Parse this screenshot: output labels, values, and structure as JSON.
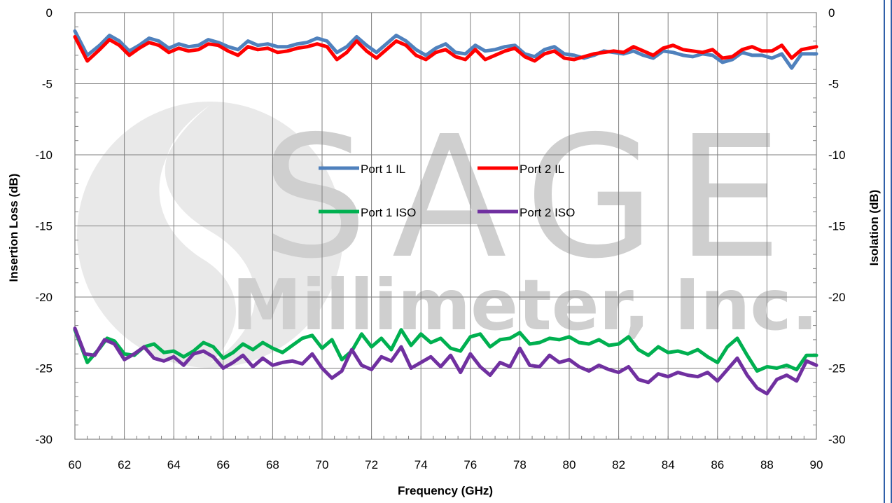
{
  "chart_data": {
    "type": "line",
    "xlabel": "Frequency (GHz)",
    "ylabel_left": "Insertion Loss (dB)",
    "ylabel_right": "Isolation (dB)",
    "xlim": [
      60,
      90
    ],
    "ylim": [
      -30,
      0
    ],
    "ylim_right": [
      -30,
      0
    ],
    "x_ticks": [
      "60",
      "62",
      "64",
      "66",
      "68",
      "70",
      "72",
      "74",
      "76",
      "78",
      "80",
      "82",
      "84",
      "86",
      "88",
      "90"
    ],
    "y_ticks": [
      "0",
      "-5",
      "-10",
      "-15",
      "-20",
      "-25",
      "-30"
    ],
    "grid": true,
    "legend_position": "center",
    "watermark": "SAGE Millimeter, Inc.",
    "series": [
      {
        "name": "Port 1 IL",
        "color": "#4f81bd",
        "x": [
          60,
          60.5,
          61,
          61.4,
          61.8,
          62.2,
          62.6,
          63,
          63.4,
          63.8,
          64.2,
          64.6,
          65,
          65.4,
          65.8,
          66.2,
          66.6,
          67,
          67.4,
          67.8,
          68.2,
          68.6,
          69,
          69.4,
          69.8,
          70.2,
          70.6,
          71,
          71.4,
          71.8,
          72.2,
          72.6,
          73,
          73.4,
          73.8,
          74.2,
          74.6,
          75,
          75.4,
          75.8,
          76.2,
          76.6,
          77,
          77.4,
          77.8,
          78.2,
          78.6,
          79,
          79.4,
          79.8,
          80.2,
          80.6,
          81,
          81.4,
          81.8,
          82.2,
          82.6,
          83,
          83.4,
          83.8,
          84.2,
          84.6,
          85,
          85.4,
          85.8,
          86.2,
          86.6,
          87,
          87.4,
          87.8,
          88.2,
          88.6,
          89,
          89.4,
          90
        ],
        "values": [
          -1.3,
          -3.0,
          -2.3,
          -1.6,
          -2.0,
          -2.7,
          -2.3,
          -1.8,
          -2.0,
          -2.5,
          -2.2,
          -2.4,
          -2.3,
          -1.9,
          -2.1,
          -2.4,
          -2.6,
          -2.0,
          -2.3,
          -2.2,
          -2.4,
          -2.4,
          -2.2,
          -2.1,
          -1.8,
          -2.0,
          -2.8,
          -2.4,
          -1.7,
          -2.3,
          -2.8,
          -2.2,
          -1.6,
          -2.0,
          -2.6,
          -3.0,
          -2.5,
          -2.2,
          -2.8,
          -2.9,
          -2.3,
          -2.7,
          -2.6,
          -2.4,
          -2.3,
          -2.9,
          -3.1,
          -2.6,
          -2.4,
          -2.9,
          -3.0,
          -3.2,
          -3.0,
          -2.7,
          -2.8,
          -2.9,
          -2.7,
          -3.0,
          -3.2,
          -2.7,
          -2.8,
          -3.0,
          -3.1,
          -2.9,
          -3.0,
          -3.5,
          -3.3,
          -2.8,
          -3.0,
          -3.0,
          -3.2,
          -2.9,
          -3.9,
          -2.9,
          -2.9
        ]
      },
      {
        "name": "Port 2 IL",
        "color": "#ff0000",
        "x": [
          60,
          60.5,
          61,
          61.4,
          61.8,
          62.2,
          62.6,
          63,
          63.4,
          63.8,
          64.2,
          64.6,
          65,
          65.4,
          65.8,
          66.2,
          66.6,
          67,
          67.4,
          67.8,
          68.2,
          68.6,
          69,
          69.4,
          69.8,
          70.2,
          70.6,
          71,
          71.4,
          71.8,
          72.2,
          72.6,
          73,
          73.4,
          73.8,
          74.2,
          74.6,
          75,
          75.4,
          75.8,
          76.2,
          76.6,
          77,
          77.4,
          77.8,
          78.2,
          78.6,
          79,
          79.4,
          79.8,
          80.2,
          80.6,
          81,
          81.4,
          81.8,
          82.2,
          82.6,
          83,
          83.4,
          83.8,
          84.2,
          84.6,
          85,
          85.4,
          85.8,
          86.2,
          86.6,
          87,
          87.4,
          87.8,
          88.2,
          88.6,
          89,
          89.4,
          90
        ],
        "values": [
          -1.7,
          -3.4,
          -2.6,
          -1.9,
          -2.3,
          -3.0,
          -2.5,
          -2.1,
          -2.3,
          -2.8,
          -2.5,
          -2.7,
          -2.6,
          -2.2,
          -2.3,
          -2.7,
          -3.0,
          -2.4,
          -2.6,
          -2.5,
          -2.8,
          -2.7,
          -2.5,
          -2.4,
          -2.2,
          -2.4,
          -3.3,
          -2.8,
          -2.0,
          -2.7,
          -3.2,
          -2.6,
          -2.0,
          -2.3,
          -3.0,
          -3.3,
          -2.8,
          -2.6,
          -3.1,
          -3.3,
          -2.6,
          -3.3,
          -3.0,
          -2.7,
          -2.5,
          -3.1,
          -3.4,
          -2.9,
          -2.7,
          -3.2,
          -3.3,
          -3.1,
          -2.9,
          -2.8,
          -2.7,
          -2.8,
          -2.4,
          -2.7,
          -3.0,
          -2.5,
          -2.3,
          -2.6,
          -2.7,
          -2.8,
          -2.6,
          -3.2,
          -3.1,
          -2.6,
          -2.4,
          -2.7,
          -2.7,
          -2.3,
          -3.2,
          -2.6,
          -2.4
        ]
      },
      {
        "name": "Port 1 ISO",
        "color": "#00b050",
        "x": [
          60,
          60.5,
          61,
          61.3,
          61.6,
          62,
          62.4,
          62.8,
          63.2,
          63.6,
          64,
          64.4,
          64.8,
          65.2,
          65.6,
          66,
          66.4,
          66.8,
          67.2,
          67.6,
          68,
          68.4,
          68.8,
          69.2,
          69.6,
          70,
          70.4,
          70.8,
          71.2,
          71.6,
          72,
          72.4,
          72.8,
          73.2,
          73.6,
          74,
          74.4,
          74.8,
          75.2,
          75.6,
          76,
          76.4,
          76.8,
          77.2,
          77.6,
          78,
          78.4,
          78.8,
          79.2,
          79.6,
          80,
          80.4,
          80.8,
          81.2,
          81.6,
          82,
          82.4,
          82.8,
          83.2,
          83.6,
          84,
          84.4,
          84.8,
          85.2,
          85.6,
          86,
          86.4,
          86.8,
          87.2,
          87.6,
          88,
          88.4,
          88.8,
          89.2,
          89.6,
          90
        ],
        "values": [
          -22.3,
          -24.6,
          -23.6,
          -22.9,
          -23.1,
          -24.0,
          -24.1,
          -23.5,
          -23.3,
          -23.9,
          -23.8,
          -24.2,
          -23.8,
          -23.2,
          -23.5,
          -24.3,
          -23.9,
          -23.3,
          -23.7,
          -23.2,
          -23.6,
          -23.9,
          -23.4,
          -22.9,
          -22.7,
          -23.6,
          -23.0,
          -24.4,
          -23.8,
          -22.6,
          -23.5,
          -22.9,
          -23.7,
          -22.3,
          -23.4,
          -22.6,
          -23.2,
          -22.9,
          -23.6,
          -23.8,
          -22.8,
          -22.6,
          -23.5,
          -23.0,
          -22.9,
          -22.5,
          -23.3,
          -23.2,
          -22.9,
          -23.0,
          -22.8,
          -23.2,
          -23.3,
          -23.0,
          -23.4,
          -23.3,
          -22.8,
          -23.7,
          -24.1,
          -23.5,
          -23.9,
          -23.8,
          -24.0,
          -23.7,
          -24.2,
          -24.6,
          -23.5,
          -22.9,
          -24.1,
          -25.2,
          -24.9,
          -25.0,
          -24.8,
          -25.1,
          -24.1,
          -24.1
        ]
      },
      {
        "name": "Port 2 ISO",
        "color": "#7030a0",
        "x": [
          60,
          60.4,
          60.8,
          61.2,
          61.6,
          62,
          62.4,
          62.8,
          63.2,
          63.6,
          64,
          64.4,
          64.8,
          65.2,
          65.6,
          66,
          66.4,
          66.8,
          67.2,
          67.6,
          68,
          68.4,
          68.8,
          69.2,
          69.6,
          70,
          70.4,
          70.8,
          71.2,
          71.6,
          72,
          72.4,
          72.8,
          73.2,
          73.6,
          74,
          74.4,
          74.8,
          75.2,
          75.6,
          76,
          76.4,
          76.8,
          77.2,
          77.6,
          78,
          78.4,
          78.8,
          79.2,
          79.6,
          80,
          80.4,
          80.8,
          81.2,
          81.6,
          82,
          82.4,
          82.8,
          83.2,
          83.6,
          84,
          84.4,
          84.8,
          85.2,
          85.6,
          86,
          86.4,
          86.8,
          87.2,
          87.6,
          88,
          88.4,
          88.8,
          89.2,
          89.6,
          90
        ],
        "values": [
          -22.2,
          -24.0,
          -24.1,
          -23.0,
          -23.3,
          -24.4,
          -24.0,
          -23.5,
          -24.3,
          -24.5,
          -24.2,
          -24.8,
          -24.0,
          -23.8,
          -24.2,
          -25.0,
          -24.6,
          -24.1,
          -24.9,
          -24.3,
          -24.8,
          -24.6,
          -24.5,
          -24.7,
          -24.0,
          -25.0,
          -25.7,
          -25.2,
          -23.7,
          -24.8,
          -25.1,
          -24.2,
          -24.5,
          -23.5,
          -25.0,
          -24.6,
          -24.2,
          -24.9,
          -24.1,
          -25.3,
          -24.0,
          -24.9,
          -25.5,
          -24.6,
          -24.9,
          -23.6,
          -24.8,
          -24.9,
          -24.1,
          -24.6,
          -24.4,
          -24.9,
          -25.2,
          -24.8,
          -25.1,
          -25.3,
          -24.9,
          -25.8,
          -26.0,
          -25.4,
          -25.6,
          -25.3,
          -25.5,
          -25.6,
          -25.3,
          -25.9,
          -25.1,
          -24.3,
          -25.5,
          -26.4,
          -26.8,
          -25.8,
          -25.5,
          -25.9,
          -24.5,
          -24.8
        ]
      }
    ]
  }
}
